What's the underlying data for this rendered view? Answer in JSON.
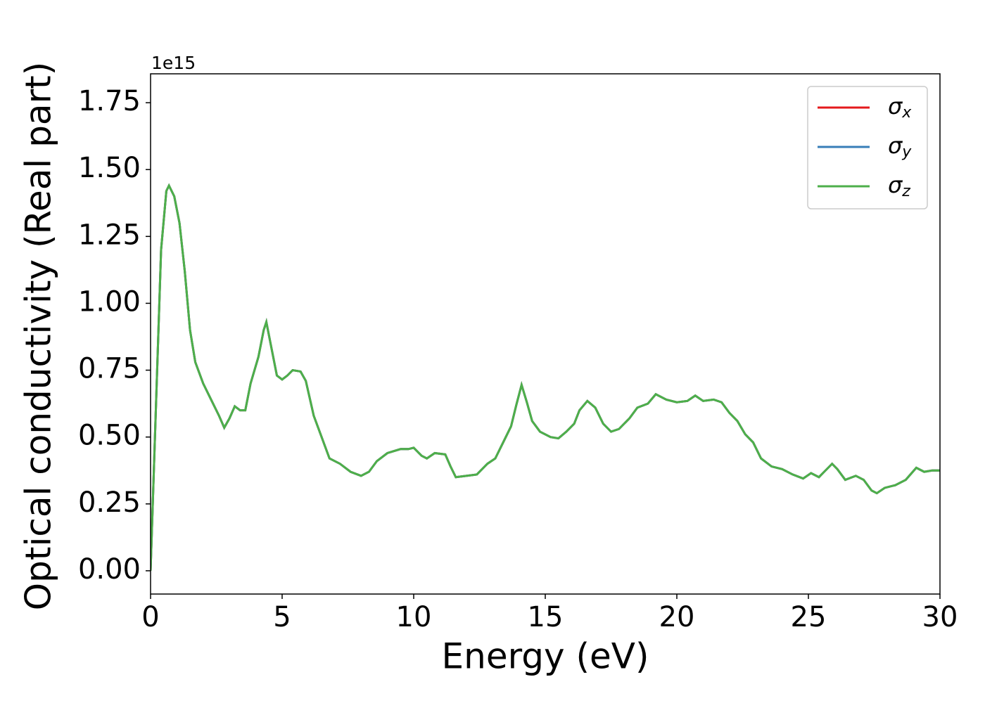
{
  "chart_data": {
    "type": "line",
    "x_label": "Energy (eV)",
    "y_label": "Optical conductivity (Real part)",
    "y_offset_label": "1e15",
    "x": [
      0,
      0.2,
      0.4,
      0.6,
      0.7,
      0.9,
      1.1,
      1.3,
      1.5,
      1.7,
      2.0,
      2.3,
      2.6,
      2.8,
      3.0,
      3.2,
      3.4,
      3.6,
      3.8,
      4.1,
      4.3,
      4.4,
      4.6,
      4.8,
      5.0,
      5.2,
      5.4,
      5.7,
      5.9,
      6.2,
      6.5,
      6.8,
      7.2,
      7.6,
      8.0,
      8.3,
      8.6,
      9.0,
      9.5,
      9.8,
      10.0,
      10.3,
      10.5,
      10.8,
      11.2,
      11.4,
      11.6,
      12.0,
      12.4,
      12.8,
      13.1,
      13.4,
      13.7,
      13.9,
      14.1,
      14.3,
      14.5,
      14.8,
      15.2,
      15.5,
      15.8,
      16.1,
      16.3,
      16.6,
      16.9,
      17.2,
      17.5,
      17.8,
      18.2,
      18.5,
      18.9,
      19.2,
      19.6,
      20.0,
      20.4,
      20.7,
      21.0,
      21.4,
      21.7,
      22.0,
      22.3,
      22.6,
      22.9,
      23.2,
      23.6,
      24.0,
      24.4,
      24.8,
      25.1,
      25.4,
      25.6,
      25.9,
      26.1,
      26.4,
      26.8,
      27.1,
      27.4,
      27.6,
      27.9,
      28.3,
      28.7,
      29.1,
      29.4,
      29.7,
      30.0
    ],
    "series": [
      {
        "name": "σx",
        "color": "#e41a1c",
        "values": [
          0.0,
          0.6,
          1.2,
          1.42,
          1.44,
          1.4,
          1.3,
          1.12,
          0.9,
          0.78,
          0.7,
          0.64,
          0.58,
          0.535,
          0.57,
          0.615,
          0.6,
          0.6,
          0.7,
          0.8,
          0.9,
          0.93,
          0.83,
          0.73,
          0.715,
          0.73,
          0.75,
          0.745,
          0.71,
          0.58,
          0.5,
          0.42,
          0.4,
          0.37,
          0.355,
          0.37,
          0.41,
          0.44,
          0.455,
          0.455,
          0.46,
          0.43,
          0.42,
          0.44,
          0.435,
          0.39,
          0.35,
          0.355,
          0.36,
          0.4,
          0.42,
          0.48,
          0.54,
          0.62,
          0.695,
          0.63,
          0.56,
          0.52,
          0.5,
          0.495,
          0.52,
          0.55,
          0.6,
          0.635,
          0.61,
          0.55,
          0.52,
          0.53,
          0.57,
          0.61,
          0.625,
          0.66,
          0.64,
          0.63,
          0.635,
          0.655,
          0.635,
          0.64,
          0.63,
          0.59,
          0.56,
          0.51,
          0.48,
          0.42,
          0.39,
          0.38,
          0.36,
          0.345,
          0.365,
          0.35,
          0.37,
          0.4,
          0.38,
          0.34,
          0.355,
          0.34,
          0.3,
          0.29,
          0.31,
          0.32,
          0.34,
          0.385,
          0.37,
          0.375,
          0.375
        ]
      },
      {
        "name": "σy",
        "color": "#377eb8",
        "values": [
          0.0,
          0.6,
          1.2,
          1.42,
          1.44,
          1.4,
          1.3,
          1.12,
          0.9,
          0.78,
          0.7,
          0.64,
          0.58,
          0.535,
          0.57,
          0.615,
          0.6,
          0.6,
          0.7,
          0.8,
          0.9,
          0.93,
          0.83,
          0.73,
          0.715,
          0.73,
          0.75,
          0.745,
          0.71,
          0.58,
          0.5,
          0.42,
          0.4,
          0.37,
          0.355,
          0.37,
          0.41,
          0.44,
          0.455,
          0.455,
          0.46,
          0.43,
          0.42,
          0.44,
          0.435,
          0.39,
          0.35,
          0.355,
          0.36,
          0.4,
          0.42,
          0.48,
          0.54,
          0.62,
          0.695,
          0.63,
          0.56,
          0.52,
          0.5,
          0.495,
          0.52,
          0.55,
          0.6,
          0.635,
          0.61,
          0.55,
          0.52,
          0.53,
          0.57,
          0.61,
          0.625,
          0.66,
          0.64,
          0.63,
          0.635,
          0.655,
          0.635,
          0.64,
          0.63,
          0.59,
          0.56,
          0.51,
          0.48,
          0.42,
          0.39,
          0.38,
          0.36,
          0.345,
          0.365,
          0.35,
          0.37,
          0.4,
          0.38,
          0.34,
          0.355,
          0.34,
          0.3,
          0.29,
          0.31,
          0.32,
          0.34,
          0.385,
          0.37,
          0.375,
          0.375
        ]
      },
      {
        "name": "σz",
        "color": "#4daf4a",
        "values": [
          0.0,
          0.6,
          1.2,
          1.42,
          1.44,
          1.4,
          1.3,
          1.12,
          0.9,
          0.78,
          0.7,
          0.64,
          0.58,
          0.535,
          0.57,
          0.615,
          0.6,
          0.6,
          0.7,
          0.8,
          0.9,
          0.93,
          0.83,
          0.73,
          0.715,
          0.73,
          0.75,
          0.745,
          0.71,
          0.58,
          0.5,
          0.42,
          0.4,
          0.37,
          0.355,
          0.37,
          0.41,
          0.44,
          0.455,
          0.455,
          0.46,
          0.43,
          0.42,
          0.44,
          0.435,
          0.39,
          0.35,
          0.355,
          0.36,
          0.4,
          0.42,
          0.48,
          0.54,
          0.62,
          0.695,
          0.63,
          0.56,
          0.52,
          0.5,
          0.495,
          0.52,
          0.55,
          0.6,
          0.635,
          0.61,
          0.55,
          0.52,
          0.53,
          0.57,
          0.61,
          0.625,
          0.66,
          0.64,
          0.63,
          0.635,
          0.655,
          0.635,
          0.64,
          0.63,
          0.59,
          0.56,
          0.51,
          0.48,
          0.42,
          0.39,
          0.38,
          0.36,
          0.345,
          0.365,
          0.35,
          0.37,
          0.4,
          0.38,
          0.34,
          0.355,
          0.34,
          0.3,
          0.29,
          0.31,
          0.32,
          0.34,
          0.385,
          0.37,
          0.375,
          0.375
        ]
      }
    ],
    "xlim": [
      0,
      30
    ],
    "xticks": [
      0,
      5,
      10,
      15,
      20,
      25,
      30
    ],
    "ylim": [
      -0.087,
      1.858
    ],
    "yticks": [
      {
        "value": 0,
        "label": "0.00"
      },
      0.25,
      {
        "value": 0.5,
        "label": "0.50"
      },
      0.75,
      {
        "value": 1,
        "label": "1.00"
      },
      1.25,
      {
        "value": 1.5,
        "label": "1.50"
      },
      1.75
    ],
    "legend": "upper right",
    "grid": false
  }
}
